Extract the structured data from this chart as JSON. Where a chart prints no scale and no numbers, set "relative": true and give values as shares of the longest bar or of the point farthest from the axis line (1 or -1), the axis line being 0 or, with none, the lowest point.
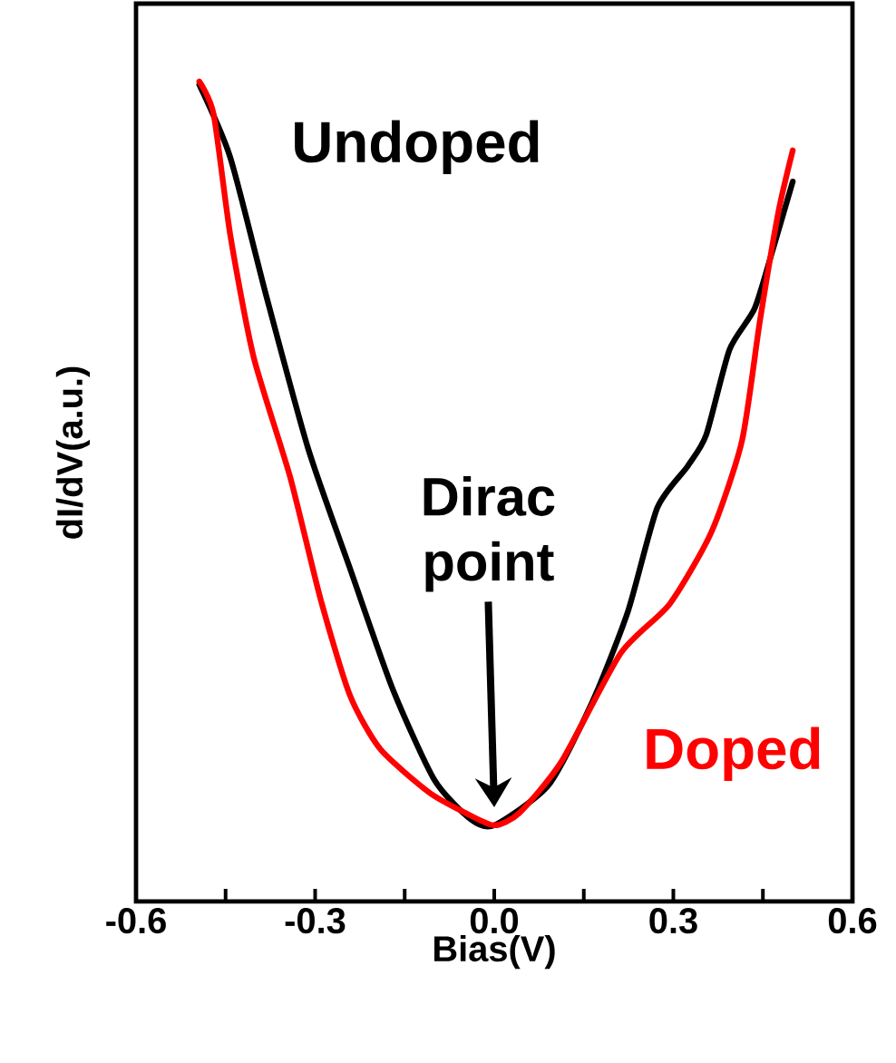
{
  "chart_data": {
    "type": "line",
    "xlabel": "Bias(V)",
    "ylabel": "dI/dV(a.u.)",
    "relative": true,
    "xlim": [
      -0.6,
      0.6
    ],
    "xticks": [
      -0.6,
      {
        "value": -0.45,
        "label": null
      },
      -0.3,
      {
        "value": -0.15,
        "label": null
      },
      {
        "value": 0,
        "label": "0.0"
      },
      {
        "value": 0.15,
        "label": null
      },
      0.3,
      {
        "value": 0.45,
        "label": null
      },
      0.6
    ],
    "annotations": [
      "Dirac point"
    ],
    "series": [
      {
        "name": "Undoped",
        "color": "#000000",
        "x": [
          -0.494,
          -0.442,
          -0.382,
          -0.312,
          -0.242,
          -0.17,
          -0.1,
          -0.039,
          0.0,
          0.091,
          0.164,
          0.224,
          0.273,
          0.324,
          0.355,
          0.394,
          0.436,
          0.467,
          0.5
        ],
        "values": [
          0.996,
          0.907,
          0.739,
          0.553,
          0.407,
          0.259,
          0.148,
          0.1,
          0.093,
          0.142,
          0.243,
          0.354,
          0.48,
          0.531,
          0.569,
          0.673,
          0.723,
          0.796,
          0.878
        ]
      },
      {
        "name": "Doped",
        "color": "#ff0000",
        "x": [
          -0.494,
          -0.47,
          -0.442,
          -0.403,
          -0.342,
          -0.291,
          -0.242,
          -0.191,
          -0.109,
          -0.048,
          0.0,
          0.042,
          0.112,
          0.212,
          0.294,
          0.364,
          0.415,
          0.445,
          0.476,
          0.5
        ],
        "values": [
          1.0,
          0.96,
          0.812,
          0.664,
          0.518,
          0.369,
          0.252,
          0.186,
          0.133,
          0.108,
          0.093,
          0.108,
          0.17,
          0.303,
          0.363,
          0.451,
          0.562,
          0.708,
          0.841,
          0.916
        ]
      }
    ]
  }
}
